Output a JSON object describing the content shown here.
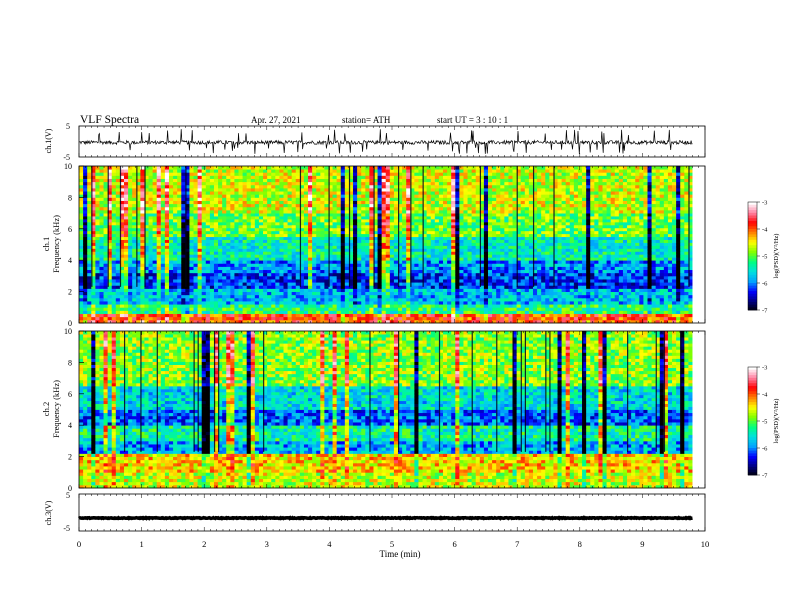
{
  "header": {
    "title": "VLF  Spectra",
    "date": "Apr. 27, 2021",
    "station": "station= ATH",
    "start": "start  UT  =    3  : 10 : 1"
  },
  "colors": {
    "spectrum_scale": [
      "#000000",
      "#000080",
      "#0000ff",
      "#00a0ff",
      "#00e0e0",
      "#00ff80",
      "#80ff00",
      "#ffff00",
      "#ff8000",
      "#ff0000",
      "#ff80a0",
      "#ffffff"
    ],
    "waveform_line": "#000000"
  },
  "chart_data": [
    {
      "type": "line",
      "name": "ch1-waveform",
      "ylabel": "ch.1(V)",
      "ylim": [
        -5,
        5
      ],
      "yticks": [
        "5",
        "-5"
      ],
      "xlim": [
        0,
        10
      ],
      "baseline": -0.3,
      "noise_amplitude": 0.6,
      "spikes_to": 4
    },
    {
      "type": "heatmap",
      "name": "ch1-spectrogram",
      "ylabel": "Frequency  (kHz)",
      "channel_label": "ch.1",
      "ylim": [
        0,
        10
      ],
      "yticks": [
        "0",
        "2",
        "4",
        "6",
        "8",
        "10"
      ],
      "xlim": [
        0,
        10
      ],
      "data_end_min": 9.8,
      "bands": [
        {
          "from": 0,
          "to": 0.6,
          "level": 0.78
        },
        {
          "from": 0.6,
          "to": 1.2,
          "level": 0.46
        },
        {
          "from": 1.2,
          "to": 2.2,
          "level": 0.32
        },
        {
          "from": 2.2,
          "to": 3.2,
          "level": 0.2
        },
        {
          "from": 3.2,
          "to": 4.0,
          "level": 0.28
        },
        {
          "from": 4.0,
          "to": 5.5,
          "level": 0.4
        },
        {
          "from": 5.5,
          "to": 7.0,
          "level": 0.52
        },
        {
          "from": 7.0,
          "to": 10.0,
          "level": 0.6
        }
      ],
      "colorbar": {
        "label": "log(PSD)(V²/Hz)",
        "range": [
          -7,
          -3
        ],
        "ticks": [
          "-3",
          "-4",
          "-5",
          "-6",
          "-7"
        ]
      }
    },
    {
      "type": "heatmap",
      "name": "ch2-spectrogram",
      "ylabel": "Frequency  (kHz)",
      "channel_label": "ch.2",
      "ylim": [
        0,
        10
      ],
      "yticks": [
        "0",
        "2",
        "4",
        "6",
        "8",
        "10"
      ],
      "xlim": [
        0,
        10
      ],
      "data_end_min": 9.8,
      "bands": [
        {
          "from": 0,
          "to": 1.0,
          "level": 0.6
        },
        {
          "from": 1.0,
          "to": 2.2,
          "level": 0.66
        },
        {
          "from": 2.2,
          "to": 3.0,
          "level": 0.3
        },
        {
          "from": 3.0,
          "to": 4.0,
          "level": 0.42
        },
        {
          "from": 4.0,
          "to": 5.0,
          "level": 0.24
        },
        {
          "from": 5.0,
          "to": 6.5,
          "level": 0.36
        },
        {
          "from": 6.5,
          "to": 10.0,
          "level": 0.55
        }
      ],
      "colorbar": {
        "label": "log(PSD)(V²/Hz)",
        "range": [
          -7,
          -3
        ],
        "ticks": [
          "-3",
          "-4",
          "-5",
          "-6",
          "-7"
        ]
      }
    },
    {
      "type": "line",
      "name": "ch3-waveform",
      "ylabel": "ch.3(V)",
      "ylim": [
        -5,
        5
      ],
      "yticks": [
        "5",
        "-5"
      ],
      "xlim": [
        0,
        10
      ],
      "baseline": -1.5,
      "noise_amplitude": 0.1
    }
  ],
  "xaxis": {
    "label": "Time  (min)",
    "ticks": [
      "0",
      "1",
      "2",
      "3",
      "4",
      "5",
      "6",
      "7",
      "8",
      "9",
      "10"
    ]
  }
}
